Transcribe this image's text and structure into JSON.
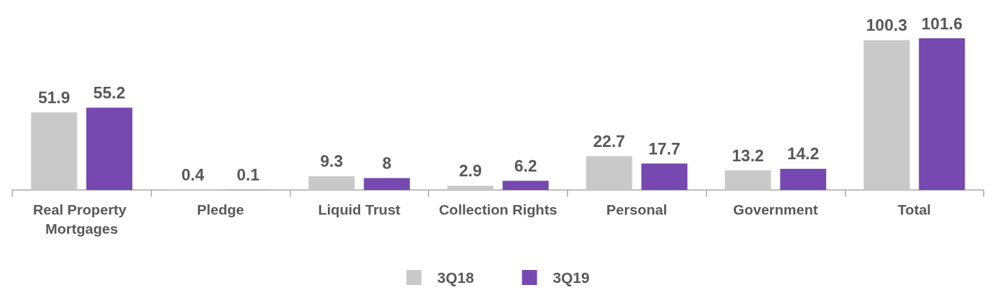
{
  "chart_data": {
    "type": "bar",
    "categories": [
      "Real Property Mortgages",
      "Pledge",
      "Liquid Trust",
      "Collection Rights",
      "Personal",
      "Government",
      "Total"
    ],
    "series": [
      {
        "name": "3Q18",
        "color": "#c9c9c9",
        "values": [
          51.9,
          0.4,
          9.3,
          2.9,
          22.7,
          13.2,
          100.3
        ]
      },
      {
        "name": "3Q19",
        "color": "#7649b0",
        "values": [
          55.2,
          0.1,
          8,
          6.2,
          17.7,
          14.2,
          101.6
        ]
      }
    ],
    "data_labels": true,
    "legend": "bottom",
    "grid": false
  }
}
